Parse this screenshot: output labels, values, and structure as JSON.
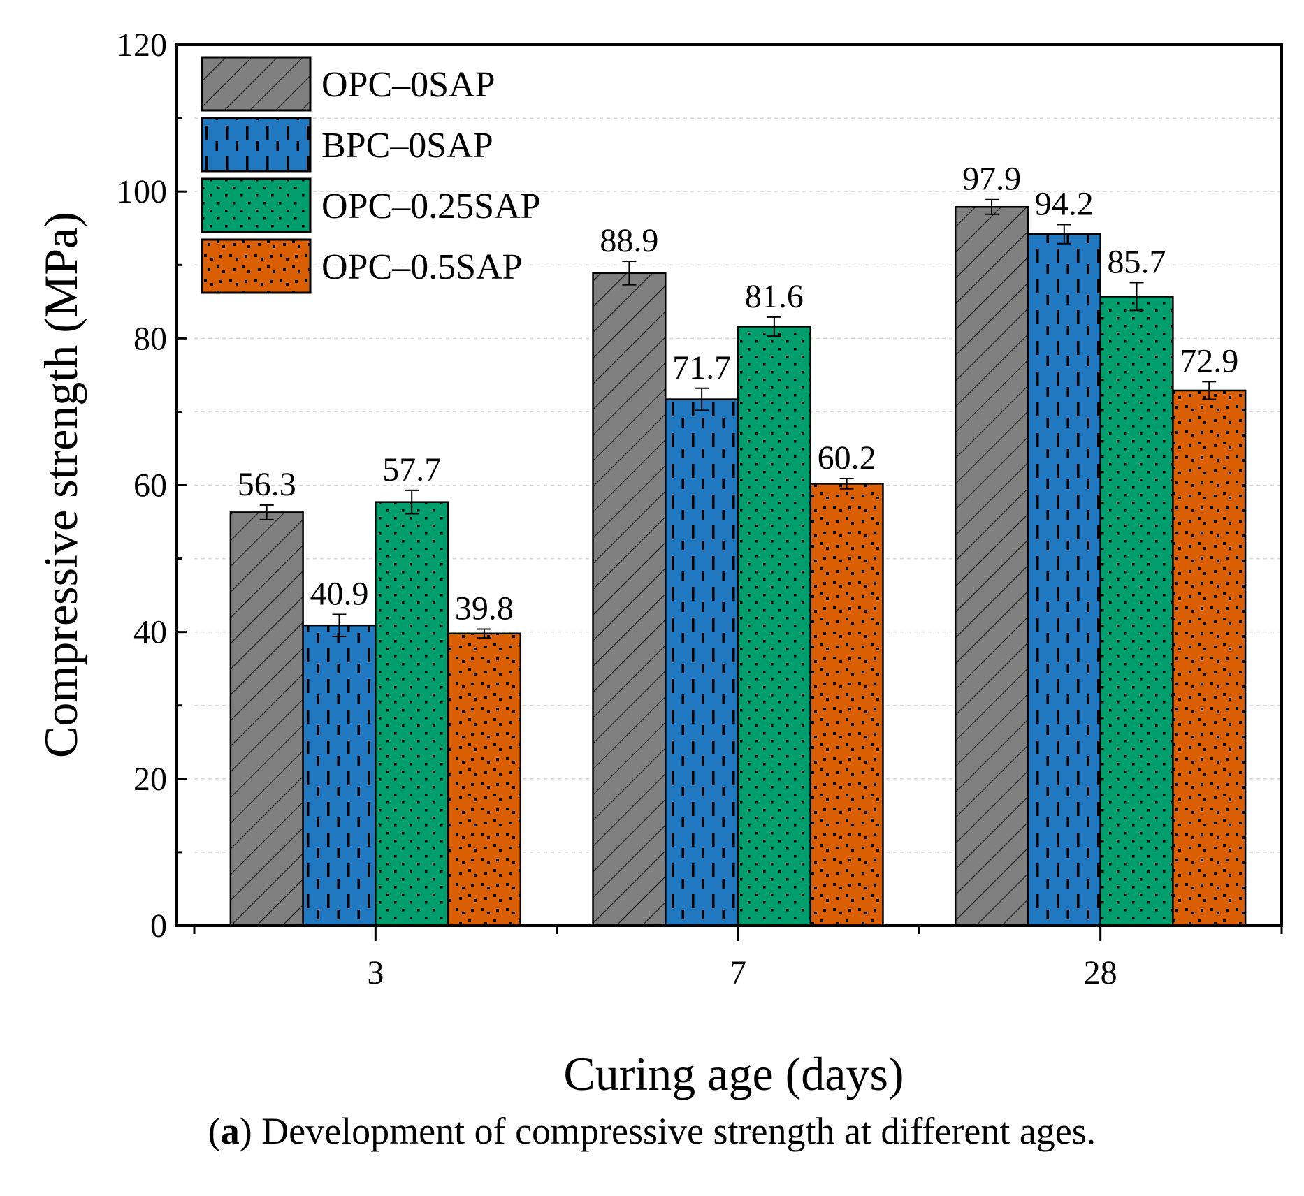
{
  "chart_data": {
    "type": "bar",
    "categories": [
      "3",
      "7",
      "28"
    ],
    "series": [
      {
        "name": "OPC–0SAP",
        "values": [
          56.3,
          88.9,
          97.9
        ],
        "errors": [
          1.0,
          1.6,
          1.0
        ],
        "color": "#808080",
        "pattern": "diagonal-hatch"
      },
      {
        "name": "BPC–0SAP",
        "values": [
          40.9,
          71.7,
          94.2
        ],
        "errors": [
          1.5,
          1.5,
          1.3
        ],
        "color": "#1f78c0",
        "pattern": "vertical-dashes"
      },
      {
        "name": "OPC–0.25SAP",
        "values": [
          57.7,
          81.6,
          85.7
        ],
        "errors": [
          1.6,
          1.3,
          1.9
        ],
        "color": "#009e6c",
        "pattern": "dots"
      },
      {
        "name": "OPC–0.5SAP",
        "values": [
          39.8,
          60.2,
          72.9
        ],
        "errors": [
          0.6,
          0.7,
          1.2
        ],
        "color": "#d95f02",
        "pattern": "scattered-squares"
      }
    ],
    "value_labels": [
      [
        "56.3",
        "88.9",
        "97.9"
      ],
      [
        "40.9",
        "71.7",
        "94.2"
      ],
      [
        "57.7",
        "81.6",
        "85.7"
      ],
      [
        "39.8",
        "60.2",
        "72.9"
      ]
    ],
    "xlabel": "Curing age (days)",
    "ylabel": "Compressive strength (MPa)",
    "ylim": [
      0,
      120
    ],
    "yticks": [
      0,
      20,
      40,
      60,
      80,
      100,
      120
    ],
    "ytick_labels": [
      "0",
      "20",
      "40",
      "60",
      "80",
      "100",
      "120"
    ],
    "grid": true,
    "legend_position": "top-left"
  },
  "caption": {
    "label": "a",
    "text": " Development of compressive strength at different ages."
  }
}
